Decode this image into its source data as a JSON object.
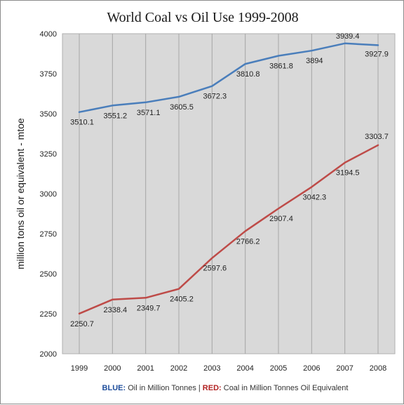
{
  "colors": {
    "plot_bg": "#d9d9d9",
    "grid": "#a6a6a6",
    "blue": "#4a7ebb",
    "red": "#be4b48",
    "legend_blue": "#1f4e9c",
    "legend_red": "#b22222"
  },
  "legend": {
    "blue_key": "BLUE:",
    "blue_text": " Oil in Million Tonnes | ",
    "red_key": "RED:",
    "red_text": " Coal in Million Tonnes Oil Equivalent"
  },
  "chart_data": {
    "type": "line",
    "title": "World Coal vs Oil Use 1999-2008",
    "xlabel": "",
    "ylabel": "million tons oil or equivalent - mtoe",
    "categories": [
      "1999",
      "2000",
      "2001",
      "2002",
      "2003",
      "2004",
      "2005",
      "2006",
      "2007",
      "2008"
    ],
    "ylim": [
      2000,
      4000
    ],
    "yticks": [
      2000,
      2250,
      2500,
      2750,
      3000,
      3250,
      3500,
      3750,
      4000
    ],
    "grid": "vertical",
    "series": [
      {
        "name": "Oil in Million Tonnes",
        "color": "#4a7ebb",
        "values": [
          3510.1,
          3551.2,
          3571.1,
          3605.5,
          3672.3,
          3810.8,
          3861.8,
          3894,
          3939.4,
          3927.9
        ],
        "labels": [
          "3510.1",
          "3551.2",
          "3571.1",
          "3605.5",
          "3672.3",
          "3810.8",
          "3861.8",
          "3894",
          "3939.4",
          "3927.9"
        ]
      },
      {
        "name": "Coal in Million Tonnes Oil Equivalent",
        "color": "#be4b48",
        "values": [
          2250.7,
          2338.4,
          2349.7,
          2405.2,
          2597.6,
          2766.2,
          2907.4,
          3042.3,
          3194.5,
          3303.7
        ],
        "labels": [
          "2250.7",
          "2338.4",
          "2349.7",
          "2405.2",
          "2597.6",
          "2766.2",
          "2907.4",
          "3042.3",
          "3194.5",
          "3303.7"
        ]
      }
    ]
  }
}
